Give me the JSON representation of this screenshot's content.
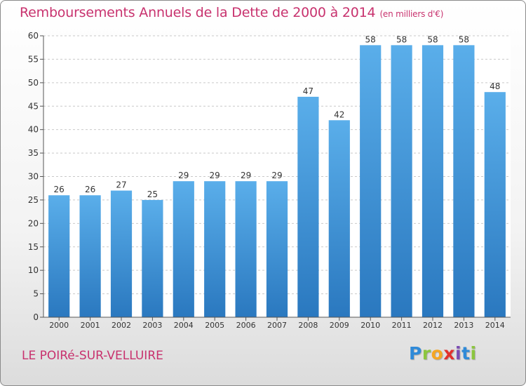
{
  "header": {
    "title": "Remboursements Annuels de la Dette de 2000 à 2014",
    "subtitle": "(en milliers d'€)"
  },
  "footer": {
    "town": "LE POIRé-SUR-VELLUIRE",
    "logo_letters": [
      "P",
      "r",
      "o",
      "x",
      "i",
      "t",
      "i"
    ]
  },
  "chart_data": {
    "type": "bar",
    "title": "Remboursements Annuels de la Dette de 2000 à 2014",
    "ylabel": "en milliers d'€",
    "xlabel": "",
    "categories": [
      "2000",
      "2001",
      "2002",
      "2003",
      "2004",
      "2005",
      "2006",
      "2007",
      "2008",
      "2009",
      "2010",
      "2011",
      "2012",
      "2013",
      "2014"
    ],
    "values": [
      26,
      26,
      27,
      25,
      29,
      29,
      29,
      29,
      47,
      42,
      58,
      58,
      58,
      58,
      48
    ],
    "ylim": [
      0,
      60
    ],
    "yticks": [
      0,
      5,
      10,
      15,
      20,
      25,
      30,
      35,
      40,
      45,
      50,
      55,
      60
    ],
    "grid": true,
    "bar_color_top": "#5aaeea",
    "bar_color_bottom": "#2a78bf",
    "grid_color": "#c9c9c9",
    "title_color": "#c8326e"
  }
}
